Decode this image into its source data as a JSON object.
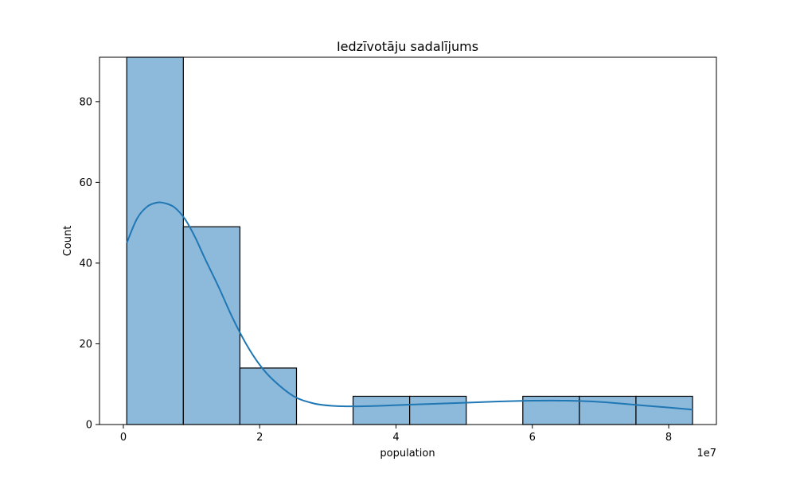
{
  "chart_data": {
    "type": "histogram",
    "title": "Iedzīvotāju sadalījums",
    "xlabel": "population",
    "ylabel": "Count",
    "x_offset_label": "1e7",
    "x_scale_factor": 10000000,
    "xlim": [
      -0.35,
      8.7
    ],
    "ylim": [
      0,
      91
    ],
    "x_ticks": [
      0,
      2,
      4,
      6,
      8
    ],
    "x_tick_labels": [
      "0",
      "2",
      "4",
      "6",
      "8"
    ],
    "y_ticks": [
      0,
      20,
      40,
      60,
      80
    ],
    "y_tick_labels": [
      "0",
      "20",
      "40",
      "60",
      "80"
    ],
    "bins": [
      {
        "x0": 0.05,
        "x1": 0.88,
        "count": 91
      },
      {
        "x0": 0.88,
        "x1": 1.71,
        "count": 49
      },
      {
        "x0": 1.71,
        "x1": 2.54,
        "count": 14
      },
      {
        "x0": 2.54,
        "x1": 3.37,
        "count": 0
      },
      {
        "x0": 3.37,
        "x1": 4.2,
        "count": 7
      },
      {
        "x0": 4.2,
        "x1": 5.03,
        "count": 7
      },
      {
        "x0": 5.03,
        "x1": 5.86,
        "count": 0
      },
      {
        "x0": 5.86,
        "x1": 6.69,
        "count": 7
      },
      {
        "x0": 6.69,
        "x1": 7.52,
        "count": 7
      },
      {
        "x0": 7.52,
        "x1": 8.35,
        "count": 7
      }
    ],
    "kde": {
      "x": [
        0.05,
        0.2,
        0.35,
        0.5,
        0.62,
        0.75,
        0.9,
        1.05,
        1.2,
        1.4,
        1.6,
        1.8,
        2.0,
        2.2,
        2.5,
        2.8,
        3.1,
        3.4,
        3.7,
        4.0,
        4.5,
        5.0,
        5.5,
        6.0,
        6.5,
        7.0,
        7.5,
        8.0,
        8.35
      ],
      "y": [
        45,
        51,
        54,
        55,
        54.8,
        53.8,
        51,
        46.5,
        41,
        34,
        26.5,
        20,
        14.8,
        11,
        7,
        5.2,
        4.6,
        4.5,
        4.6,
        4.8,
        5.1,
        5.4,
        5.7,
        5.9,
        5.9,
        5.6,
        4.9,
        4.2,
        3.7
      ]
    },
    "colors": {
      "bar_fill": "#8db9db",
      "bar_edge": "#000000",
      "kde_line": "#1f77b4"
    },
    "grid": false,
    "legend": "none"
  }
}
